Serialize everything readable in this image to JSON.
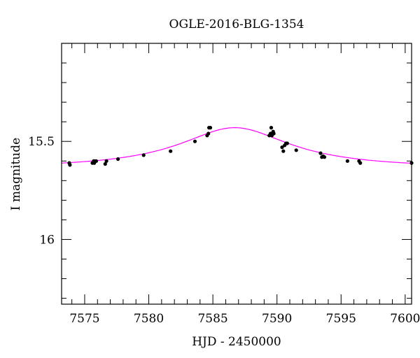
{
  "chart_data": {
    "type": "scatter",
    "title": "OGLE-2016-BLG-1354",
    "xlabel": "HJD - 2450000",
    "ylabel": "I magnitude",
    "xlim": [
      7573.2,
      7600.5
    ],
    "ylim": [
      16.33,
      15.0
    ],
    "y_axis_inverted": true,
    "x_major_ticks": [
      7575,
      7580,
      7585,
      7590,
      7595,
      7600
    ],
    "x_tick_labels": [
      "7575",
      "7580",
      "7585",
      "7590",
      "7595",
      "7600"
    ],
    "x_minor_step": 1,
    "y_major_ticks": [
      15.5,
      16
    ],
    "y_tick_labels": [
      "15.5",
      "16"
    ],
    "y_minor_step": 0.1,
    "grid": false,
    "points_color": "#000000",
    "series": [
      {
        "type": "scatter",
        "x": [
          7573.8,
          7573.85,
          7575.6,
          7575.7,
          7575.75,
          7575.8,
          7575.9,
          7576.6,
          7576.7,
          7577.6,
          7579.6,
          7581.7,
          7583.6,
          7584.55,
          7584.65,
          7584.7,
          7584.8,
          7589.4,
          7589.5,
          7589.55,
          7589.6,
          7589.7,
          7589.75,
          7590.4,
          7590.5,
          7590.6,
          7590.7,
          7590.8,
          7591.5,
          7593.4,
          7593.5,
          7593.6,
          7593.7,
          7595.5,
          7596.4,
          7596.5,
          7600.5
        ],
        "y": [
          15.61,
          15.62,
          15.61,
          15.6,
          15.61,
          15.6,
          15.6,
          15.615,
          15.6,
          15.59,
          15.57,
          15.55,
          15.5,
          15.47,
          15.46,
          15.43,
          15.43,
          15.47,
          15.46,
          15.43,
          15.47,
          15.45,
          15.46,
          15.53,
          15.55,
          15.52,
          15.51,
          15.51,
          15.545,
          15.56,
          15.58,
          15.575,
          15.58,
          15.6,
          15.6,
          15.61,
          15.61
        ]
      },
      {
        "type": "line",
        "color": "#ff00ff",
        "model": "point-lens",
        "t0": 7586.7,
        "tE": 9.0,
        "u0": 0.5,
        "base_mag": 15.63,
        "peak_mag": 15.43
      }
    ]
  }
}
